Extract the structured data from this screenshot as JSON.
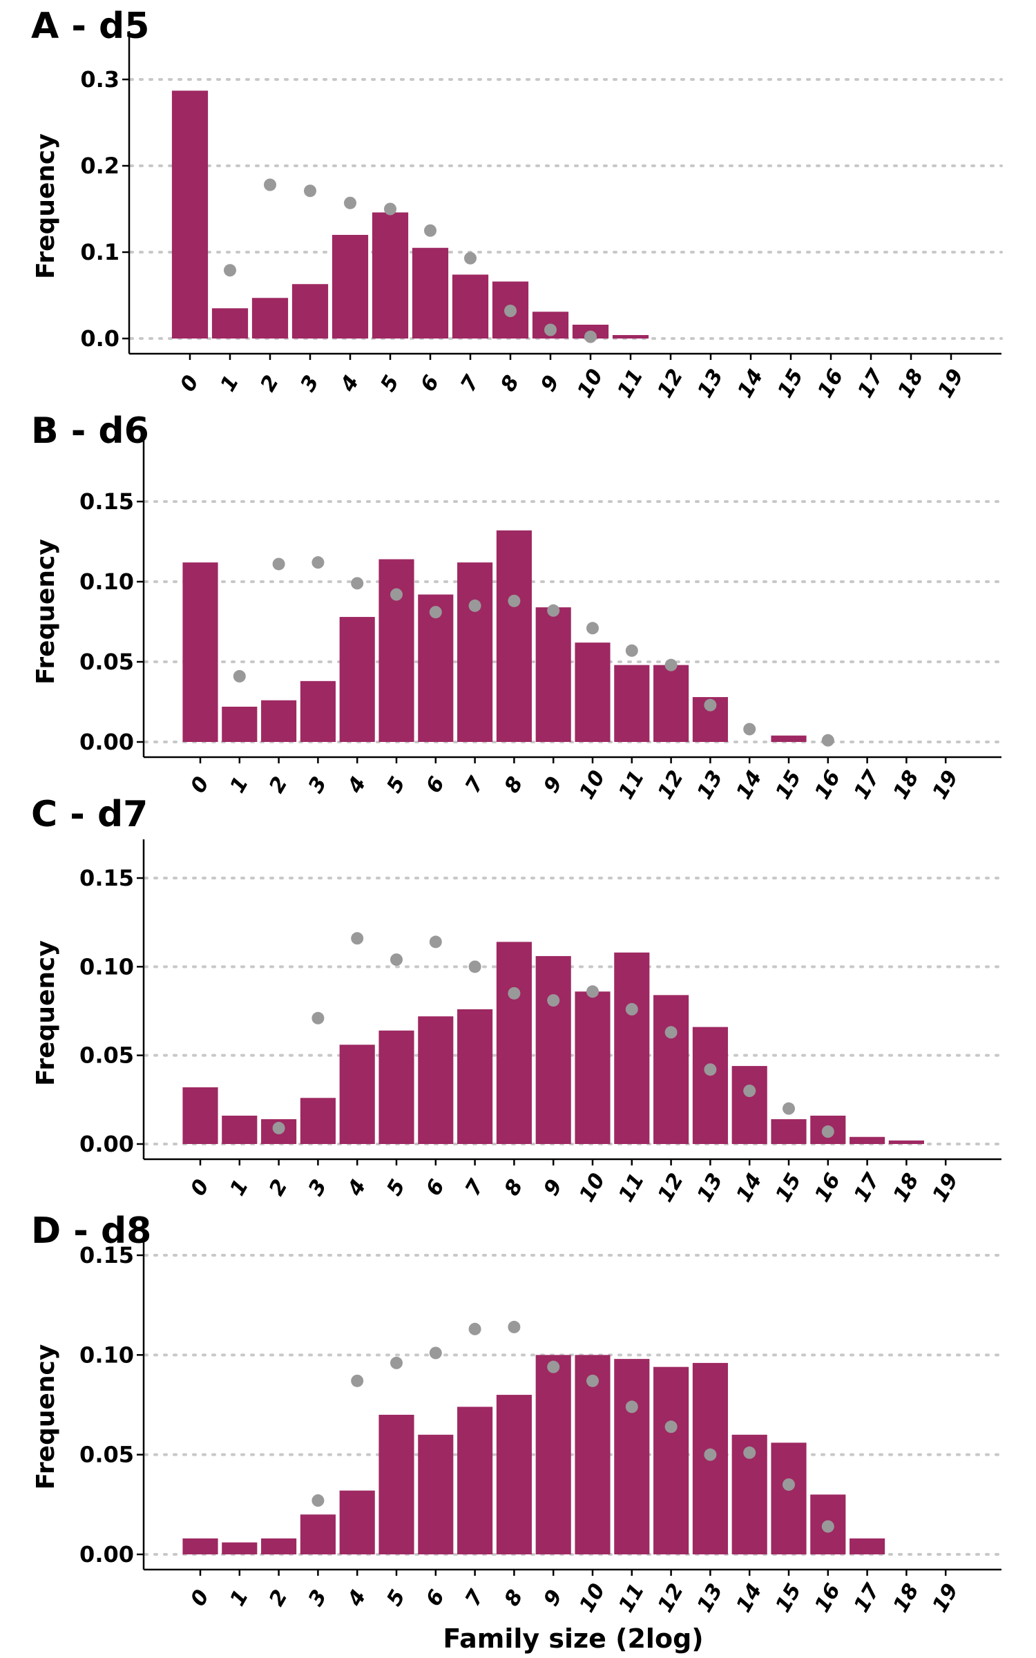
{
  "chart_data": [
    {
      "type": "bar",
      "title": "A - d5",
      "ylabel": "Frequency",
      "xlabel": "",
      "categories": [
        "0",
        "1",
        "2",
        "3",
        "4",
        "5",
        "6",
        "7",
        "8",
        "9",
        "10",
        "11",
        "12",
        "13",
        "14",
        "15",
        "16",
        "17",
        "18",
        "19"
      ],
      "ylim": [
        0,
        0.32
      ],
      "yticks": [
        0.0,
        0.1,
        0.2,
        0.3
      ],
      "ytick_labels": [
        "0.0",
        "0.1",
        "0.2",
        "0.3"
      ],
      "grid": "horizontal dotted",
      "series": [
        {
          "kind": "bar",
          "values": [
            0.287,
            0.035,
            0.047,
            0.063,
            0.12,
            0.146,
            0.105,
            0.074,
            0.066,
            0.031,
            0.016,
            0.004,
            null,
            null,
            null,
            null,
            null,
            null,
            null,
            null
          ]
        },
        {
          "kind": "point",
          "values": [
            null,
            0.079,
            0.178,
            0.171,
            0.157,
            0.15,
            0.125,
            0.093,
            0.032,
            0.01,
            0.002,
            null,
            null,
            null,
            null,
            null,
            null,
            null,
            null,
            null
          ]
        }
      ]
    },
    {
      "type": "bar",
      "title": "B - d6",
      "ylabel": "Frequency",
      "xlabel": "",
      "categories": [
        "0",
        "1",
        "2",
        "3",
        "4",
        "5",
        "6",
        "7",
        "8",
        "9",
        "10",
        "11",
        "12",
        "13",
        "14",
        "15",
        "16",
        "17",
        "18",
        "19"
      ],
      "ylim": [
        0,
        0.17
      ],
      "yticks": [
        0.0,
        0.05,
        0.1,
        0.15
      ],
      "ytick_labels": [
        "0.00",
        "0.05",
        "0.10",
        "0.15"
      ],
      "grid": "horizontal dotted",
      "series": [
        {
          "kind": "bar",
          "values": [
            0.112,
            0.022,
            0.026,
            0.038,
            0.078,
            0.114,
            0.092,
            0.112,
            0.132,
            0.084,
            0.062,
            0.048,
            0.048,
            0.028,
            null,
            0.004,
            null,
            null,
            null,
            null
          ]
        },
        {
          "kind": "point",
          "values": [
            null,
            0.041,
            0.111,
            0.112,
            0.099,
            0.092,
            0.081,
            0.085,
            0.088,
            0.082,
            0.071,
            0.057,
            0.048,
            0.023,
            0.008,
            null,
            0.001,
            null,
            null,
            null
          ]
        }
      ]
    },
    {
      "type": "bar",
      "title": "C - d7",
      "ylabel": "Frequency",
      "xlabel": "",
      "categories": [
        "0",
        "1",
        "2",
        "3",
        "4",
        "5",
        "6",
        "7",
        "8",
        "9",
        "10",
        "11",
        "12",
        "13",
        "14",
        "15",
        "16",
        "17",
        "18",
        "19"
      ],
      "ylim": [
        0,
        0.17
      ],
      "yticks": [
        0.0,
        0.05,
        0.1,
        0.15
      ],
      "ytick_labels": [
        "0.00",
        "0.05",
        "0.10",
        "0.15"
      ],
      "grid": "horizontal dotted",
      "series": [
        {
          "kind": "bar",
          "values": [
            0.032,
            0.016,
            0.014,
            0.026,
            0.056,
            0.064,
            0.072,
            0.076,
            0.114,
            0.106,
            0.086,
            0.108,
            0.084,
            0.066,
            0.044,
            0.014,
            0.016,
            0.004,
            0.002,
            null
          ]
        },
        {
          "kind": "point",
          "values": [
            null,
            null,
            0.009,
            0.071,
            0.116,
            0.104,
            0.114,
            0.1,
            0.085,
            0.081,
            0.086,
            0.076,
            0.063,
            0.042,
            0.03,
            0.02,
            0.007,
            null,
            null,
            null
          ]
        }
      ]
    },
    {
      "type": "bar",
      "title": "D - d8",
      "ylabel": "Frequency",
      "xlabel": "Family size (2log)",
      "categories": [
        "0",
        "1",
        "2",
        "3",
        "4",
        "5",
        "6",
        "7",
        "8",
        "9",
        "10",
        "11",
        "12",
        "13",
        "14",
        "15",
        "16",
        "17",
        "18",
        "19"
      ],
      "ylim": [
        0,
        0.157
      ],
      "yticks": [
        0.0,
        0.05,
        0.1,
        0.15
      ],
      "ytick_labels": [
        "0.00",
        "0.05",
        "0.10",
        "0.15"
      ],
      "grid": "horizontal dotted",
      "series": [
        {
          "kind": "bar",
          "values": [
            0.008,
            0.006,
            0.008,
            0.02,
            0.032,
            0.07,
            0.06,
            0.074,
            0.08,
            0.1,
            0.1,
            0.098,
            0.094,
            0.096,
            0.06,
            0.056,
            0.03,
            0.008,
            null,
            null
          ]
        },
        {
          "kind": "point",
          "values": [
            null,
            null,
            null,
            0.027,
            0.087,
            0.096,
            0.101,
            0.113,
            0.114,
            0.094,
            0.087,
            0.074,
            0.064,
            0.05,
            0.051,
            0.035,
            0.014,
            null,
            null,
            null
          ]
        }
      ]
    }
  ],
  "colors": {
    "bar": "#9e2862",
    "point": "#999999",
    "grid": "#c8c8c8",
    "axis": "#000000"
  }
}
